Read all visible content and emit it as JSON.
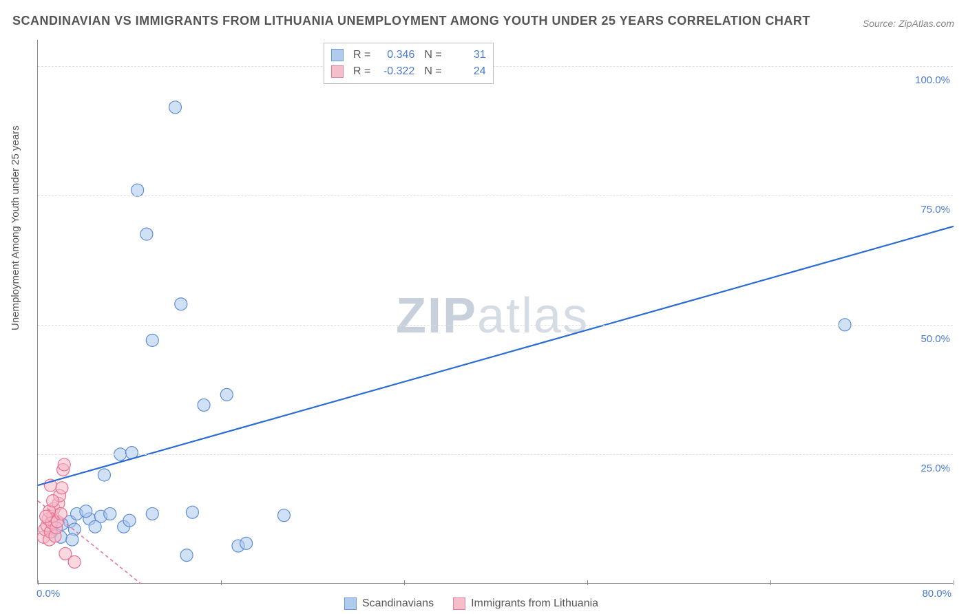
{
  "title": "SCANDINAVIAN VS IMMIGRANTS FROM LITHUANIA UNEMPLOYMENT AMONG YOUTH UNDER 25 YEARS CORRELATION CHART",
  "source": "Source: ZipAtlas.com",
  "ylabel": "Unemployment Among Youth under 25 years",
  "watermark_zip": "ZIP",
  "watermark_atlas": "atlas",
  "chart": {
    "type": "scatter",
    "xlim": [
      0,
      80
    ],
    "ylim": [
      0,
      105
    ],
    "background_color": "#ffffff",
    "grid_color": "#dddddd",
    "axis_color": "#888888",
    "tick_color": "#4a7bd0",
    "yticks": [
      25,
      50,
      75,
      100
    ],
    "ytick_labels": [
      "25.0%",
      "50.0%",
      "75.0%",
      "100.0%"
    ],
    "xticks": [
      0,
      16,
      32,
      48,
      64,
      80
    ],
    "xtick_labels_shown": {
      "0": "0.0%",
      "80": "80.0%"
    },
    "marker_radius": 9,
    "marker_stroke_width": 1.2,
    "label_fontsize": 15,
    "title_fontsize": 18,
    "series": [
      {
        "name": "Scandinavians",
        "fill": "#a9c6ec",
        "stroke": "#5e8dd6",
        "fill_opacity": 0.55,
        "points": [
          [
            1.2,
            10
          ],
          [
            2.0,
            9
          ],
          [
            2.8,
            12
          ],
          [
            3.4,
            13.5
          ],
          [
            3.2,
            10.5
          ],
          [
            4.5,
            12.5
          ],
          [
            4.2,
            14
          ],
          [
            5.5,
            13
          ],
          [
            5.0,
            11
          ],
          [
            6.3,
            13.5
          ],
          [
            7.5,
            11
          ],
          [
            8.0,
            12.2
          ],
          [
            5.8,
            21
          ],
          [
            7.2,
            25
          ],
          [
            8.2,
            25.3
          ],
          [
            10.0,
            13.5
          ],
          [
            13.5,
            13.8
          ],
          [
            13.0,
            5.5
          ],
          [
            17.5,
            7.3
          ],
          [
            18.2,
            7.8
          ],
          [
            21.5,
            13.2
          ],
          [
            14.5,
            34.5
          ],
          [
            16.5,
            36.5
          ],
          [
            10.0,
            47
          ],
          [
            12.5,
            54
          ],
          [
            9.5,
            67.5
          ],
          [
            8.7,
            76
          ],
          [
            12.0,
            92
          ],
          [
            70.5,
            50.0
          ],
          [
            3.0,
            8.5
          ],
          [
            2.1,
            11.5
          ]
        ],
        "trend": {
          "x1": 0,
          "y1": 19,
          "x2": 80,
          "y2": 69,
          "stroke": "#2a6bd4",
          "width": 2.2,
          "dash": ""
        },
        "stats": {
          "R": "0.346",
          "N": "31"
        }
      },
      {
        "name": "Immigrants from Lithuania",
        "fill": "#f4b8c6",
        "stroke": "#e96f92",
        "fill_opacity": 0.55,
        "points": [
          [
            0.5,
            9
          ],
          [
            0.6,
            10.5
          ],
          [
            0.8,
            11.2
          ],
          [
            0.9,
            12.5
          ],
          [
            1.0,
            8.5
          ],
          [
            1.1,
            10
          ],
          [
            1.2,
            11.8
          ],
          [
            1.3,
            13
          ],
          [
            1.4,
            14.5
          ],
          [
            1.5,
            9.2
          ],
          [
            1.6,
            10.8
          ],
          [
            1.7,
            12
          ],
          [
            1.8,
            15.5
          ],
          [
            1.9,
            17
          ],
          [
            2.0,
            13.5
          ],
          [
            2.1,
            18.5
          ],
          [
            2.2,
            22
          ],
          [
            2.3,
            23
          ],
          [
            1.0,
            14
          ],
          [
            1.3,
            16
          ],
          [
            0.7,
            13
          ],
          [
            2.4,
            5.8
          ],
          [
            3.2,
            4.2
          ],
          [
            1.1,
            19
          ]
        ],
        "trend": {
          "x1": 0,
          "y1": 16,
          "x2": 9,
          "y2": 0,
          "stroke": "#e96f92",
          "width": 1.5,
          "dash": "5,4"
        },
        "stats": {
          "R": "-0.322",
          "N": "24"
        }
      }
    ]
  },
  "legend_top_labels": {
    "R": "R =",
    "N": "N ="
  },
  "legend_bottom": [
    "Scandinavians",
    "Immigrants from Lithuania"
  ]
}
